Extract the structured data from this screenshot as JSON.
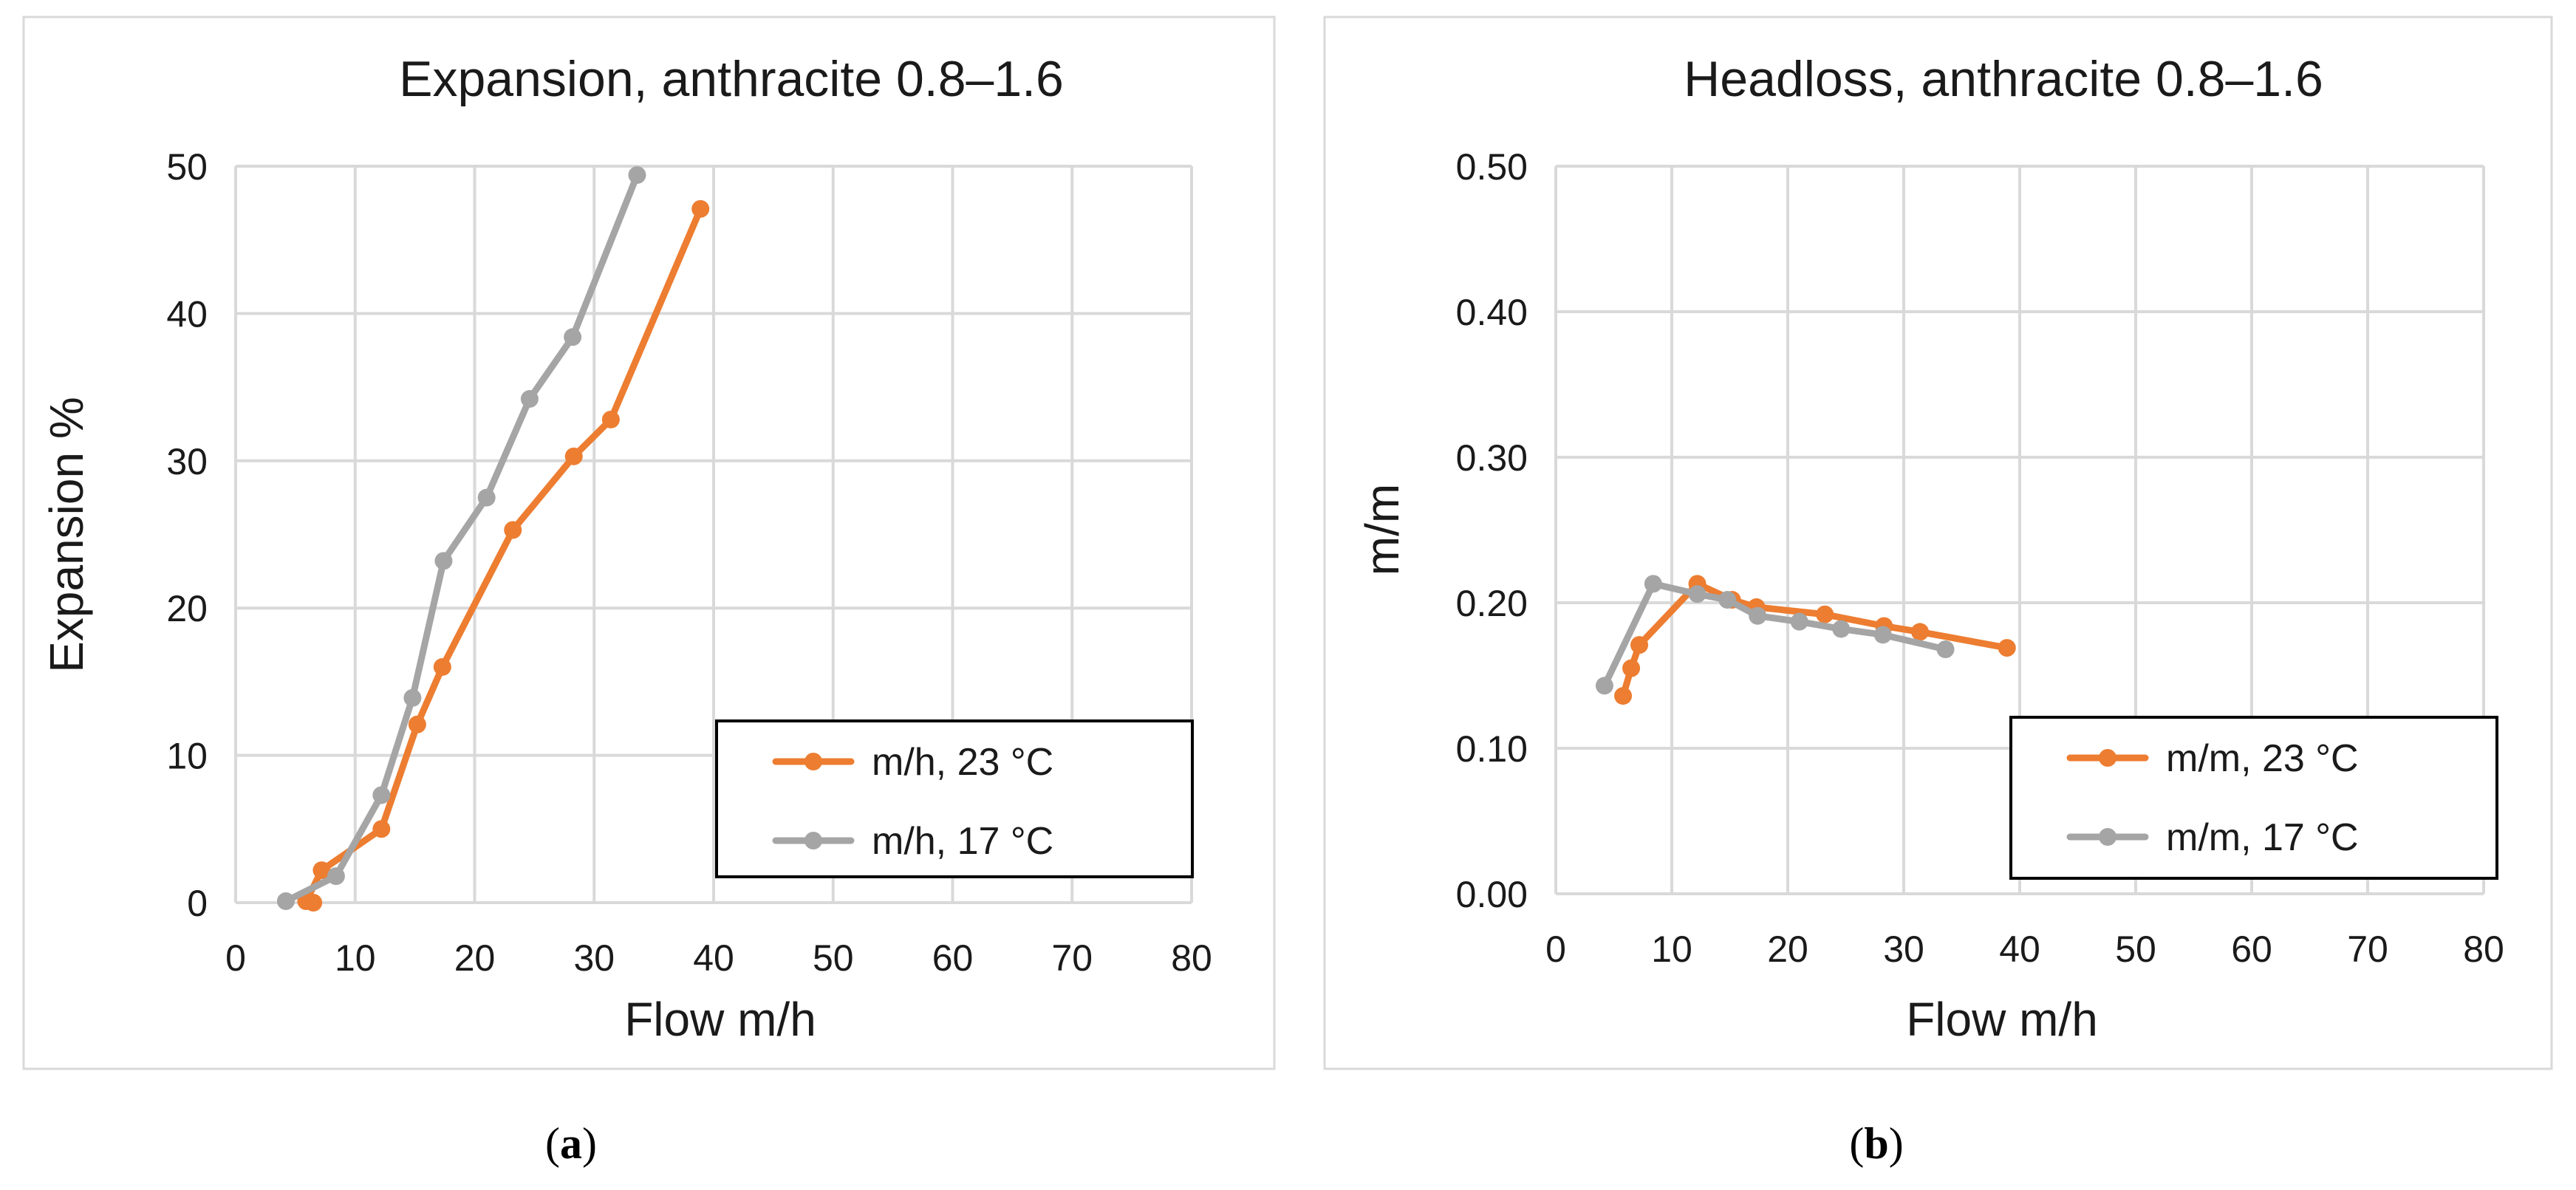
{
  "colors": {
    "series_orange": "#ED7D31",
    "series_gray": "#A5A5A5",
    "grid": "#D9D9D9",
    "frame": "#D9D9D9",
    "legend_border": "#000000",
    "text": "#1a1a1a"
  },
  "chart_data": [
    {
      "type": "line",
      "title": "Expansion, anthracite 0.8–1.6",
      "xlabel": "Flow m/h",
      "ylabel": "Expansion %",
      "xlim": [
        0,
        80
      ],
      "ylim": [
        0,
        50
      ],
      "x_ticks": [
        0,
        10,
        20,
        30,
        40,
        50,
        60,
        70,
        80
      ],
      "y_ticks": [
        0,
        10,
        20,
        30,
        40,
        50
      ],
      "x_tick_labels": [
        "0",
        "10",
        "20",
        "30",
        "40",
        "50",
        "60",
        "70",
        "80"
      ],
      "y_tick_labels": [
        "0",
        "10",
        "20",
        "30",
        "40",
        "50"
      ],
      "grid": true,
      "legend_position": "bottom-right",
      "caption_prefix": "(",
      "caption_letter": "a",
      "caption_suffix": ")",
      "series": [
        {
          "name": "m/h, 23 °C",
          "color": "#ED7D31",
          "x": [
            6.5,
            5.9,
            7.2,
            12.2,
            15.2,
            17.3,
            23.2,
            28.3,
            31.4,
            38.9
          ],
          "y": [
            0.0,
            0.1,
            2.2,
            5.0,
            12.1,
            16.0,
            25.3,
            30.3,
            32.8,
            47.1
          ]
        },
        {
          "name": "m/h, 17 °C",
          "color": "#A5A5A5",
          "x": [
            4.2,
            8.4,
            12.2,
            14.8,
            17.4,
            21.0,
            24.6,
            28.2,
            33.6
          ],
          "y": [
            0.1,
            1.8,
            7.3,
            13.9,
            23.2,
            27.5,
            34.2,
            38.4,
            49.4
          ]
        }
      ]
    },
    {
      "type": "line",
      "title": "Headloss, anthracite 0.8–1.6",
      "xlabel": "Flow m/h",
      "ylabel": "m/m",
      "xlim": [
        0,
        80
      ],
      "ylim": [
        0,
        0.5
      ],
      "x_ticks": [
        0,
        10,
        20,
        30,
        40,
        50,
        60,
        70,
        80
      ],
      "y_ticks": [
        0,
        0.1,
        0.2,
        0.3,
        0.4,
        0.5
      ],
      "x_tick_labels": [
        "0",
        "10",
        "20",
        "30",
        "40",
        "50",
        "60",
        "70",
        "80"
      ],
      "y_tick_labels": [
        "0.00",
        "0.10",
        "0.20",
        "0.30",
        "0.40",
        "0.50"
      ],
      "grid": true,
      "legend_position": "bottom-right",
      "caption_prefix": "(",
      "caption_letter": "b",
      "caption_suffix": ")",
      "series": [
        {
          "name": "m/m, 23 °C",
          "color": "#ED7D31",
          "x": [
            5.8,
            6.5,
            7.2,
            12.2,
            15.2,
            17.3,
            23.2,
            28.3,
            31.4,
            38.9
          ],
          "y": [
            0.136,
            0.155,
            0.171,
            0.213,
            0.202,
            0.197,
            0.192,
            0.184,
            0.18,
            0.169
          ]
        },
        {
          "name": "m/m, 17 °C",
          "color": "#A5A5A5",
          "x": [
            4.2,
            8.4,
            12.2,
            14.8,
            17.4,
            21.0,
            24.6,
            28.2,
            33.6
          ],
          "y": [
            0.143,
            0.213,
            0.206,
            0.202,
            0.191,
            0.187,
            0.182,
            0.178,
            0.168
          ]
        }
      ]
    }
  ]
}
